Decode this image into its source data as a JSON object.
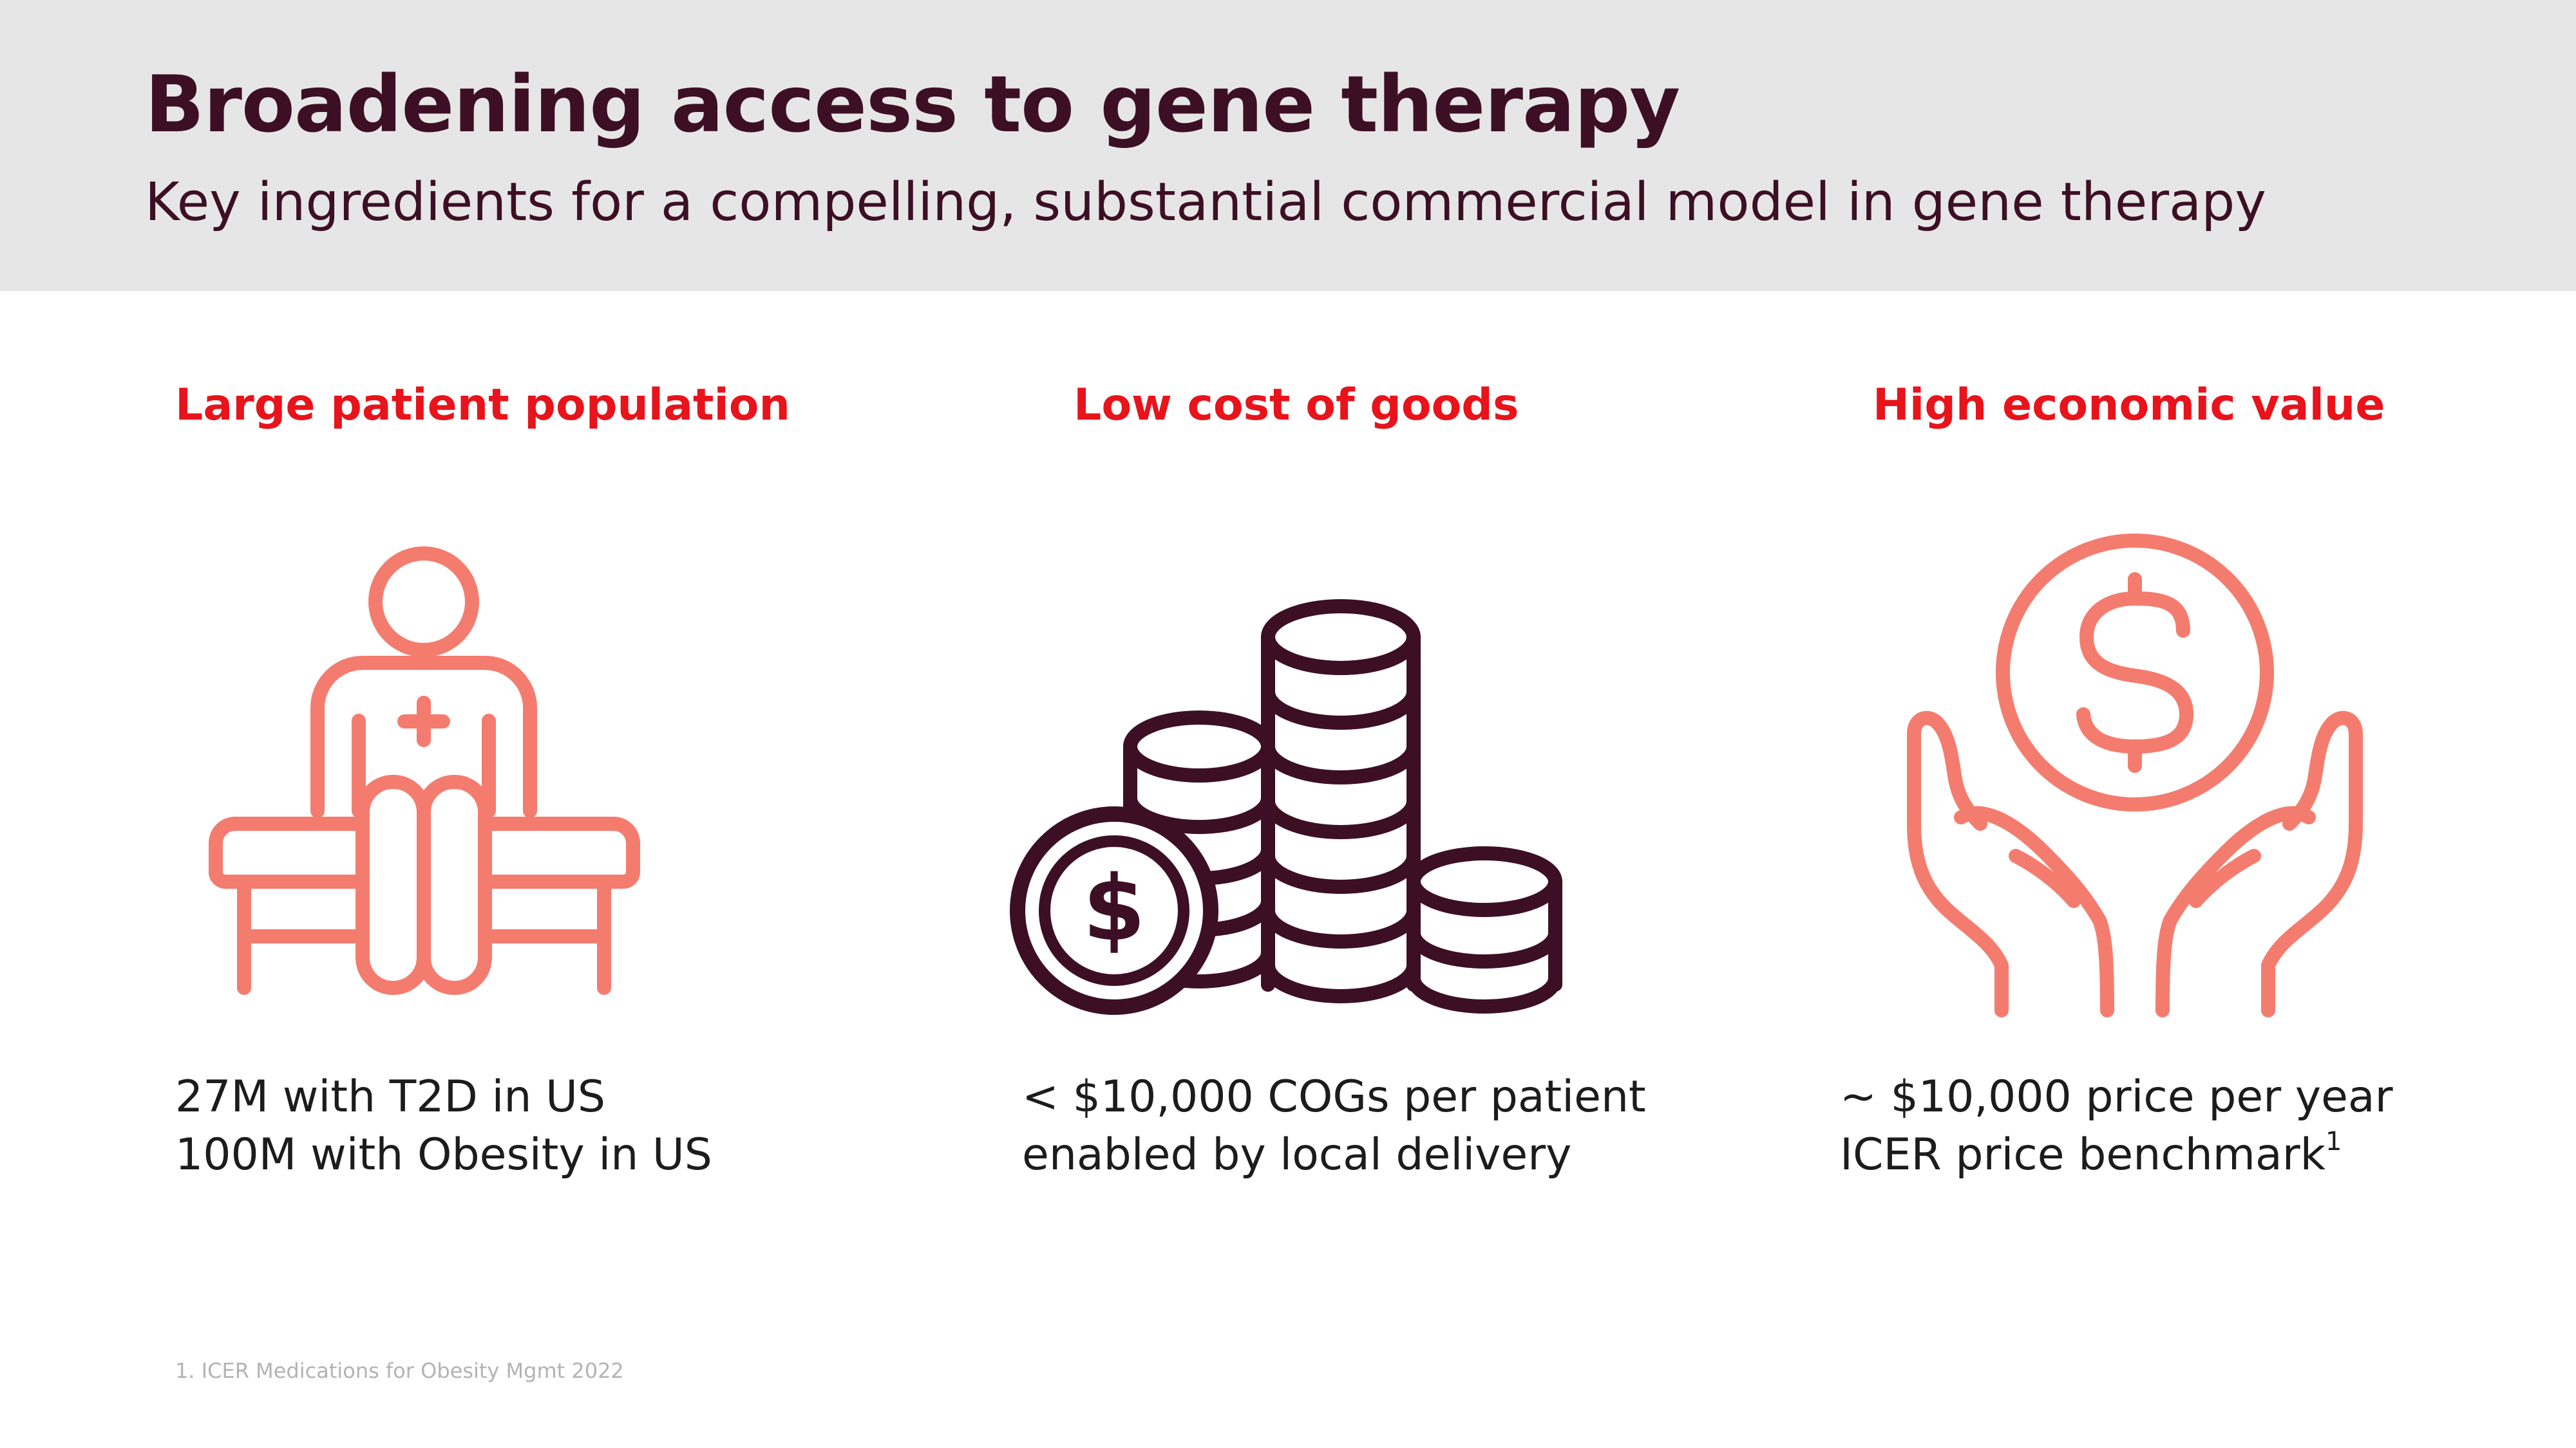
{
  "header": {
    "title": "Broadening access to gene therapy",
    "subtitle": "Key ingredients for a compelling, substantial commercial model in gene therapy"
  },
  "columns": [
    {
      "heading": "Large patient population",
      "icon": "patient-icon",
      "lines": [
        "27M with T2D in US",
        "100M with Obesity in US"
      ]
    },
    {
      "heading": "Low cost of goods",
      "icon": "coin-stacks-icon",
      "lines": [
        "< $10,000 COGs per patient",
        "enabled by local delivery"
      ]
    },
    {
      "heading": "High economic value",
      "icon": "hands-dollar-icon",
      "lines": [
        "~ $10,000 price per year",
        "ICER price benchmark"
      ],
      "superscript": "1"
    }
  ],
  "footnote": "1. ICER Medications for Obesity Mgmt 2022",
  "colors": {
    "header_background": "#e6e6e6",
    "title": "#3d0f25",
    "heading_accent": "#e8131b",
    "icon_salmon": "#f47c6e",
    "icon_dark": "#3d0f25",
    "body_text": "#1c1c1c",
    "footnote": "#b3b3b3"
  }
}
